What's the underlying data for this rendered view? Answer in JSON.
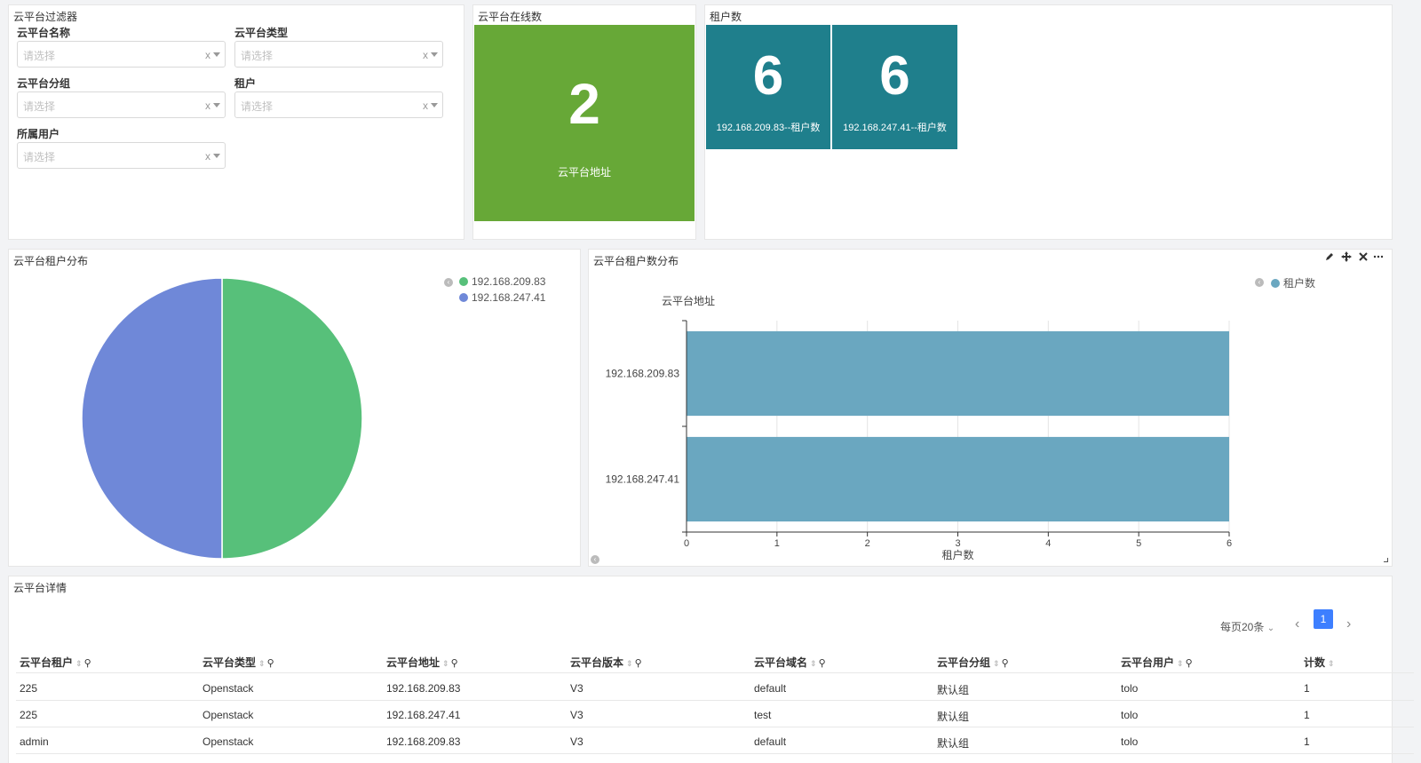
{
  "filter": {
    "title": "云平台过滤器",
    "fields": [
      {
        "label": "云平台名称",
        "placeholder": "请选择"
      },
      {
        "label": "云平台类型",
        "placeholder": "请选择"
      },
      {
        "label": "云平台分组",
        "placeholder": "请选择"
      },
      {
        "label": "租户",
        "placeholder": "请选择"
      },
      {
        "label": "所属用户",
        "placeholder": "请选择"
      }
    ],
    "clear_glyph": "x"
  },
  "online": {
    "title": "云平台在线数",
    "value": "2",
    "label": "云平台地址",
    "color": "#67a837"
  },
  "tenants": {
    "title": "租户数",
    "color": "#1f7f8c",
    "tiles": [
      {
        "value": "6",
        "label": "192.168.209.83--租户数"
      },
      {
        "value": "6",
        "label": "192.168.247.41--租户数"
      }
    ]
  },
  "pie": {
    "title": "云平台租户分布",
    "legend": [
      {
        "name": "192.168.209.83",
        "color": "#57c07a"
      },
      {
        "name": "192.168.247.41",
        "color": "#6f88d8"
      }
    ]
  },
  "bar": {
    "title": "云平台租户数分布",
    "legend": {
      "name": "租户数",
      "color": "#6aa7c0"
    },
    "icons": [
      "pencil-icon",
      "move-icon",
      "close-icon",
      "more-icon"
    ]
  },
  "chart_data": [
    {
      "type": "pie",
      "title": "云平台租户分布",
      "categories": [
        "192.168.209.83",
        "192.168.247.41"
      ],
      "values": [
        6,
        6
      ],
      "colors": [
        "#57c07a",
        "#6f88d8"
      ],
      "legend": "top-right"
    },
    {
      "type": "bar",
      "orientation": "horizontal",
      "title": "云平台租户数分布",
      "categories": [
        "192.168.209.83",
        "192.168.247.41"
      ],
      "series": [
        {
          "name": "租户数",
          "values": [
            6,
            6
          ],
          "color": "#6aa7c0"
        }
      ],
      "xlabel": "租户数",
      "ylabel": "云平台地址",
      "xlim": [
        0,
        6
      ],
      "xticks": [
        "0",
        "1",
        "2",
        "3",
        "4",
        "5",
        "6"
      ],
      "grid": true,
      "legend": "top-right"
    }
  ],
  "table": {
    "title": "云平台详情",
    "page_size_label": "每页20条",
    "current_page": "1",
    "columns": [
      "云平台租户",
      "云平台类型",
      "云平台地址",
      "云平台版本",
      "云平台域名",
      "云平台分组",
      "云平台用户",
      "计数"
    ],
    "rows": [
      [
        "225",
        "Openstack",
        "192.168.209.83",
        "V3",
        "default",
        "默认组",
        "tolo",
        "1"
      ],
      [
        "225",
        "Openstack",
        "192.168.247.41",
        "V3",
        "test",
        "默认组",
        "tolo",
        "1"
      ],
      [
        "admin",
        "Openstack",
        "192.168.209.83",
        "V3",
        "default",
        "默认组",
        "tolo",
        "1"
      ]
    ]
  }
}
